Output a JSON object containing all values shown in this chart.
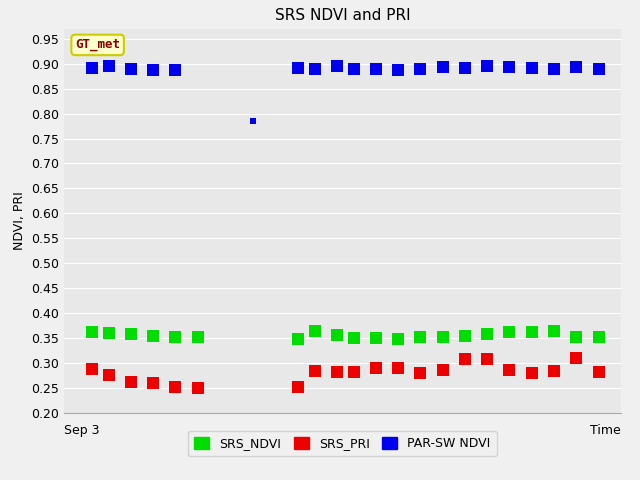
{
  "title": "SRS NDVI and PRI",
  "xlabel": "Time",
  "ylabel": "NDVI, PRI",
  "annotation_text": "GT_met",
  "ylim": [
    0.2,
    0.97
  ],
  "yticks": [
    0.2,
    0.25,
    0.3,
    0.35,
    0.4,
    0.45,
    0.5,
    0.55,
    0.6,
    0.65,
    0.7,
    0.75,
    0.8,
    0.85,
    0.9,
    0.95
  ],
  "xmin": 0,
  "xmax": 100,
  "plot_bg_color": "#e8e8e8",
  "fig_bg_color": "#f0f0f0",
  "grid_color": "#ffffff",
  "ndvi_color": "#00dd00",
  "pri_color": "#ee0000",
  "parsw_color": "#0000ee",
  "legend_labels": [
    "SRS_NDVI",
    "SRS_PRI",
    "PAR-SW NDVI"
  ],
  "marker_size": 9,
  "ndvi_data_x": [
    5,
    8,
    12,
    16,
    20,
    24,
    42,
    45,
    49,
    52,
    56,
    60,
    64,
    68,
    72,
    76,
    80,
    84,
    88,
    92,
    96
  ],
  "ndvi_data_y": [
    0.363,
    0.36,
    0.358,
    0.355,
    0.352,
    0.352,
    0.348,
    0.365,
    0.357,
    0.35,
    0.35,
    0.348,
    0.352,
    0.352,
    0.355,
    0.358,
    0.362,
    0.363,
    0.365,
    0.352,
    0.352
  ],
  "pri_data_x": [
    5,
    8,
    12,
    16,
    20,
    24,
    42,
    45,
    49,
    52,
    56,
    60,
    64,
    68,
    72,
    76,
    80,
    84,
    88,
    92,
    96
  ],
  "pri_data_y": [
    0.288,
    0.275,
    0.262,
    0.26,
    0.252,
    0.25,
    0.252,
    0.283,
    0.282,
    0.282,
    0.29,
    0.29,
    0.28,
    0.285,
    0.308,
    0.308,
    0.285,
    0.28,
    0.283,
    0.31,
    0.282
  ],
  "parsw_data_x": [
    5,
    8,
    12,
    16,
    20,
    42,
    45,
    49,
    52,
    56,
    60,
    64,
    68,
    72,
    76,
    80,
    84,
    88,
    92,
    96
  ],
  "parsw_data_y": [
    0.892,
    0.895,
    0.89,
    0.888,
    0.888,
    0.892,
    0.89,
    0.895,
    0.89,
    0.89,
    0.888,
    0.89,
    0.893,
    0.892,
    0.895,
    0.893,
    0.892,
    0.89,
    0.893,
    0.89
  ],
  "parsw_outlier_x": [
    34
  ],
  "parsw_outlier_y": [
    0.785
  ],
  "xtick_label": "Sep 3",
  "title_fontsize": 11,
  "axis_fontsize": 9,
  "tick_fontsize": 9,
  "legend_fontsize": 9,
  "annot_fontsize": 9
}
